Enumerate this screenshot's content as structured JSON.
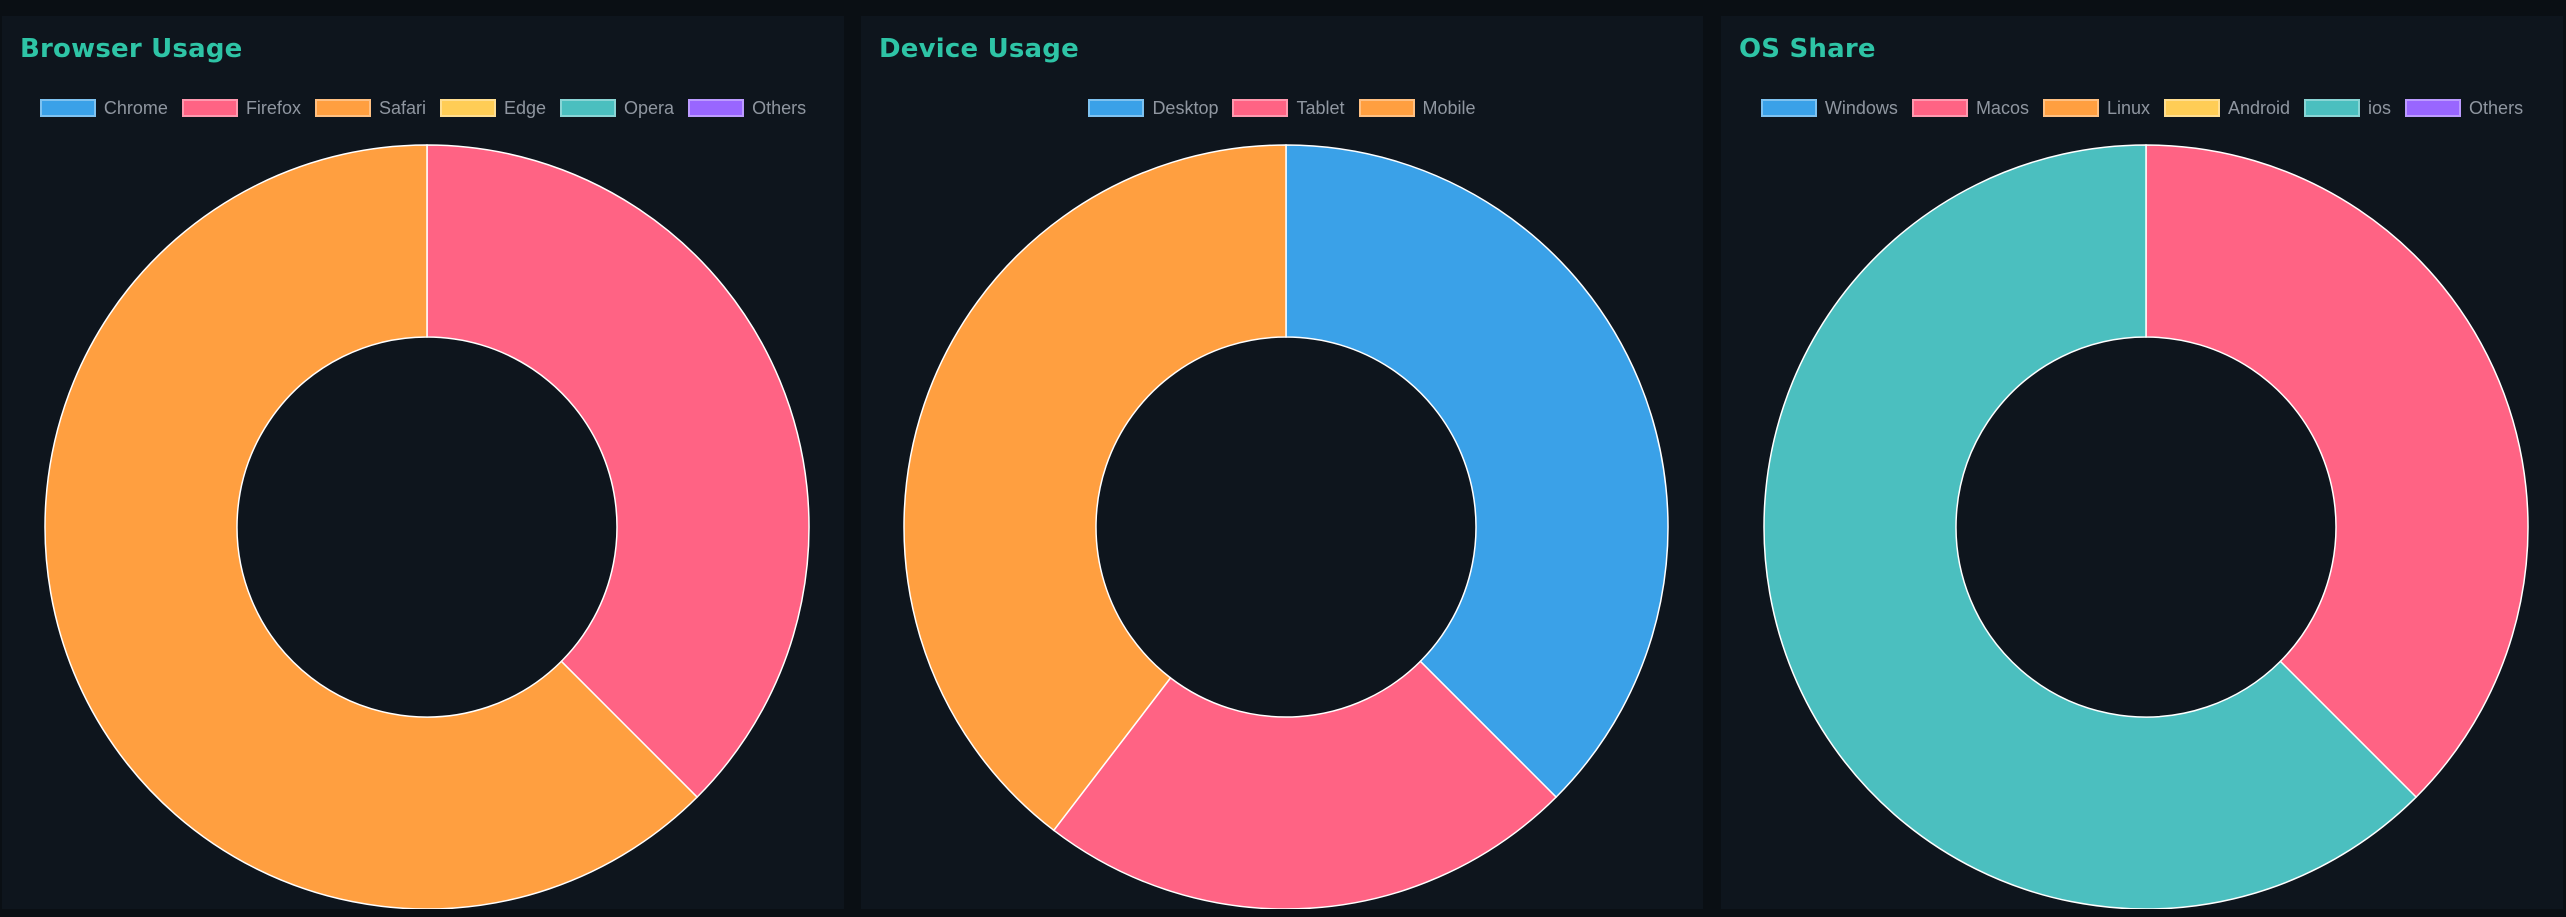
{
  "colors": {
    "blue": "#3aa1e8",
    "pink": "#ff6384",
    "orange": "#ff9f40",
    "yellow": "#ffcd56",
    "teal": "#4bbfbf",
    "purple": "#9966ff",
    "title": "#2ec4a6"
  },
  "chart_data": [
    {
      "type": "pie",
      "variant": "doughnut",
      "title": "Browser Usage",
      "legend_position": "top",
      "categories": [
        "Chrome",
        "Firefox",
        "Safari",
        "Edge",
        "Opera",
        "Others"
      ],
      "colors": [
        "#3aa1e8",
        "#ff6384",
        "#ff9f40",
        "#ffcd56",
        "#4bbfbf",
        "#9966ff"
      ],
      "values": [
        0,
        37.5,
        62.5,
        0,
        0,
        0
      ]
    },
    {
      "type": "pie",
      "variant": "doughnut",
      "title": "Device Usage",
      "legend_position": "top",
      "categories": [
        "Desktop",
        "Tablet",
        "Mobile"
      ],
      "colors": [
        "#3aa1e8",
        "#ff6384",
        "#ff9f40"
      ],
      "values": [
        37.5,
        22.9,
        39.6
      ]
    },
    {
      "type": "pie",
      "variant": "doughnut",
      "title": "OS Share",
      "legend_position": "top",
      "categories": [
        "Windows",
        "Macos",
        "Linux",
        "Android",
        "ios",
        "Others"
      ],
      "colors": [
        "#3aa1e8",
        "#ff6384",
        "#ff9f40",
        "#ffcd56",
        "#4bbfbf",
        "#9966ff"
      ],
      "values": [
        0,
        37.5,
        0,
        0,
        62.5,
        0
      ]
    }
  ]
}
